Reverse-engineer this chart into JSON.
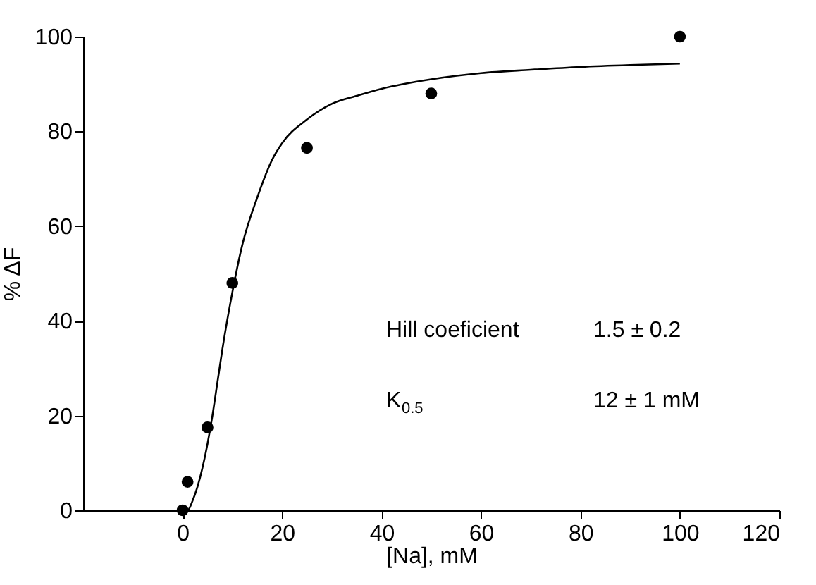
{
  "chart_data": {
    "type": "scatter",
    "xlabel": "[Na], mM",
    "ylabel": "% ΔF",
    "xlim": [
      -20,
      120
    ],
    "xticks": [
      0,
      20,
      40,
      60,
      80,
      100,
      120
    ],
    "ylim": [
      0,
      100
    ],
    "yticks": [
      0,
      20,
      40,
      60,
      80,
      100
    ],
    "grid": false,
    "series": [
      {
        "type": "scatter",
        "marker": "circle",
        "color": "#000000",
        "x": [
          0,
          1,
          5,
          10,
          25,
          50,
          100
        ],
        "values": [
          0,
          6,
          17.5,
          48,
          76.5,
          88,
          100
        ]
      },
      {
        "type": "line",
        "color": "#000000",
        "line_style": "solid",
        "x": [
          0,
          1,
          2,
          3,
          4,
          5,
          6,
          7,
          8,
          10,
          12,
          15,
          18,
          20,
          25,
          30,
          35,
          40,
          50,
          60,
          70,
          80,
          90,
          100
        ],
        "values": [
          0,
          0,
          2,
          5,
          9,
          14,
          20,
          27,
          34,
          46,
          56,
          66,
          74,
          77.5,
          82.5,
          85.8,
          87.5,
          89,
          91,
          92.3,
          93,
          93.6,
          94,
          94.3
        ]
      }
    ],
    "annotations": [
      "Hill coeficient",
      "1.5 ± 0.2",
      "K$_{0.5}$",
      "12 ± 1 mM"
    ]
  }
}
